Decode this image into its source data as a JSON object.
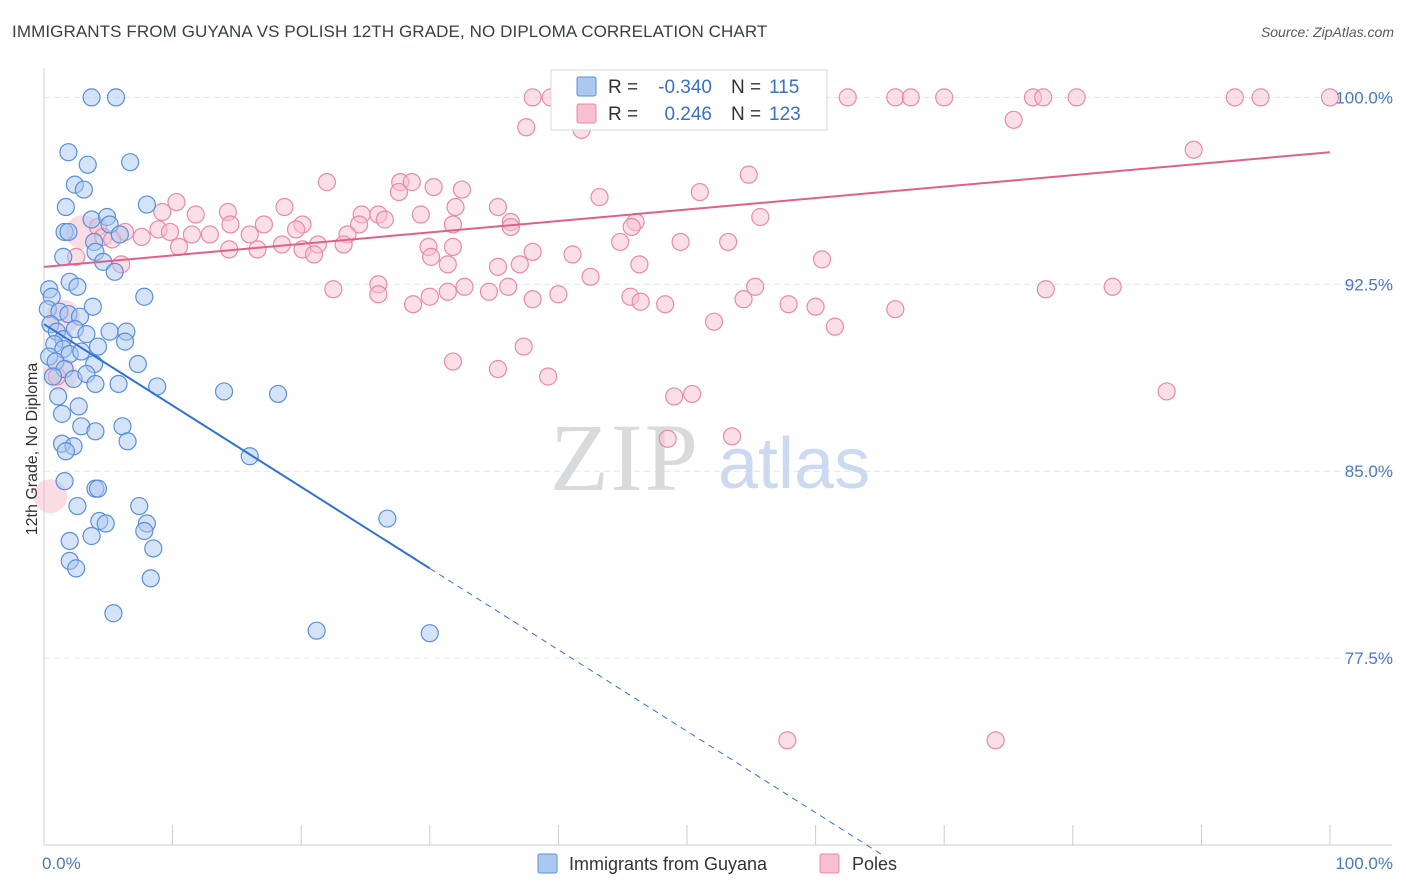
{
  "header": {
    "title": "IMMIGRANTS FROM GUYANA VS POLISH 12TH GRADE, NO DIPLOMA CORRELATION CHART",
    "source": "Source: ZipAtlas.com"
  },
  "watermark": {
    "zip": "ZIP",
    "atlas": "atlas"
  },
  "legend_top": {
    "rows": [
      {
        "r_label": "R =",
        "r_value": "-0.340",
        "n_label": "N =",
        "n_value": "115"
      },
      {
        "r_label": "R =",
        "r_value": "0.246",
        "n_label": "N =",
        "n_value": "123"
      }
    ]
  },
  "colors": {
    "blue_fill": "#aac8f0",
    "blue_stroke": "#5b8fd8",
    "blue_line": "#2f72d4",
    "pink_fill": "#f7bfd0",
    "pink_stroke": "#e88aa8",
    "pink_line": "#e0608a",
    "grid": "#e3e6ea",
    "tick_text": "#4a78c2"
  },
  "chart_data": {
    "type": "scatter",
    "title": "IMMIGRANTS FROM GUYANA VS POLISH 12TH GRADE, NO DIPLOMA CORRELATION CHART",
    "xlabel": "",
    "ylabel": "12th Grade, No Diploma",
    "xlim": [
      0,
      100
    ],
    "ylim": [
      70.0,
      101.5
    ],
    "x_tick_labels": [
      "0.0%",
      "100.0%"
    ],
    "y_ticks": [
      {
        "value": 77.5,
        "label": "77.5%"
      },
      {
        "value": 85.0,
        "label": "85.0%"
      },
      {
        "value": 92.5,
        "label": "92.5%"
      },
      {
        "value": 100.0,
        "label": "100.0%"
      }
    ],
    "grid": true,
    "legend_position": "top-center",
    "series": [
      {
        "name": "Immigrants from Guyana",
        "r": -0.34,
        "n": 115,
        "trend": {
          "x0": 0,
          "y0": 90.9,
          "x1": 30,
          "y1": 81.1,
          "dash_to_x": 65.2,
          "dash_to_y": 69.6
        },
        "points": [
          [
            3.7,
            100.0
          ],
          [
            5.6,
            100.0
          ],
          [
            1.9,
            97.8
          ],
          [
            3.4,
            97.3
          ],
          [
            6.7,
            97.4
          ],
          [
            2.4,
            96.5
          ],
          [
            3.1,
            96.3
          ],
          [
            1.7,
            95.6
          ],
          [
            8.0,
            95.7
          ],
          [
            3.7,
            95.1
          ],
          [
            4.9,
            95.2
          ],
          [
            5.1,
            94.9
          ],
          [
            1.6,
            94.6
          ],
          [
            1.9,
            94.6
          ],
          [
            3.9,
            94.2
          ],
          [
            5.9,
            94.5
          ],
          [
            1.5,
            93.6
          ],
          [
            4.0,
            93.8
          ],
          [
            4.6,
            93.4
          ],
          [
            5.5,
            93.0
          ],
          [
            2.0,
            92.6
          ],
          [
            2.6,
            92.4
          ],
          [
            0.4,
            92.3
          ],
          [
            0.6,
            92.0
          ],
          [
            7.8,
            92.0
          ],
          [
            0.3,
            91.5
          ],
          [
            1.2,
            91.4
          ],
          [
            1.9,
            91.3
          ],
          [
            2.8,
            91.2
          ],
          [
            3.8,
            91.6
          ],
          [
            0.5,
            90.9
          ],
          [
            1.0,
            90.6
          ],
          [
            1.5,
            90.3
          ],
          [
            2.4,
            90.7
          ],
          [
            3.3,
            90.5
          ],
          [
            5.1,
            90.6
          ],
          [
            6.4,
            90.6
          ],
          [
            0.8,
            90.1
          ],
          [
            1.5,
            89.9
          ],
          [
            2.0,
            89.7
          ],
          [
            2.9,
            89.8
          ],
          [
            4.2,
            90.0
          ],
          [
            6.3,
            90.2
          ],
          [
            0.4,
            89.6
          ],
          [
            0.9,
            89.4
          ],
          [
            1.6,
            89.1
          ],
          [
            3.9,
            89.3
          ],
          [
            7.3,
            89.3
          ],
          [
            0.7,
            88.8
          ],
          [
            2.3,
            88.7
          ],
          [
            3.3,
            88.9
          ],
          [
            4.0,
            88.5
          ],
          [
            5.8,
            88.5
          ],
          [
            8.8,
            88.4
          ],
          [
            14.0,
            88.2
          ],
          [
            18.2,
            88.1
          ],
          [
            1.1,
            88.0
          ],
          [
            2.7,
            87.6
          ],
          [
            1.4,
            87.3
          ],
          [
            2.9,
            86.8
          ],
          [
            4.0,
            86.6
          ],
          [
            6.1,
            86.8
          ],
          [
            6.5,
            86.2
          ],
          [
            1.4,
            86.1
          ],
          [
            2.3,
            86.0
          ],
          [
            1.7,
            85.8
          ],
          [
            16.0,
            85.6
          ],
          [
            1.6,
            84.6
          ],
          [
            4.0,
            84.3
          ],
          [
            4.2,
            84.3
          ],
          [
            2.6,
            83.6
          ],
          [
            7.4,
            83.6
          ],
          [
            4.3,
            83.0
          ],
          [
            4.8,
            82.9
          ],
          [
            8.0,
            82.9
          ],
          [
            7.8,
            82.6
          ],
          [
            3.7,
            82.4
          ],
          [
            2.0,
            82.2
          ],
          [
            8.5,
            81.9
          ],
          [
            2.0,
            81.4
          ],
          [
            2.5,
            81.1
          ],
          [
            8.3,
            80.7
          ],
          [
            26.7,
            83.1
          ],
          [
            5.4,
            79.3
          ],
          [
            21.2,
            78.6
          ],
          [
            30.0,
            78.5
          ]
        ]
      },
      {
        "name": "Poles",
        "r": 0.246,
        "n": 123,
        "trend": {
          "x0": 0,
          "y0": 93.2,
          "x1": 100,
          "y1": 97.8
        },
        "points": [
          [
            38.0,
            100.0
          ],
          [
            39.4,
            100.0
          ],
          [
            41.0,
            100.0
          ],
          [
            46.1,
            100.0
          ],
          [
            48.0,
            100.0
          ],
          [
            53.0,
            100.0
          ],
          [
            56.5,
            100.0
          ],
          [
            57.5,
            100.0
          ],
          [
            62.5,
            100.0
          ],
          [
            66.2,
            100.0
          ],
          [
            67.4,
            100.0
          ],
          [
            70.0,
            100.0
          ],
          [
            76.9,
            100.0
          ],
          [
            77.7,
            100.0
          ],
          [
            80.3,
            100.0
          ],
          [
            92.6,
            100.0
          ],
          [
            94.6,
            100.0
          ],
          [
            100.0,
            100.0
          ],
          [
            37.5,
            98.8
          ],
          [
            41.8,
            98.7
          ],
          [
            75.4,
            99.1
          ],
          [
            89.4,
            97.9
          ],
          [
            54.8,
            96.9
          ],
          [
            22.0,
            96.6
          ],
          [
            27.7,
            96.6
          ],
          [
            28.6,
            96.6
          ],
          [
            30.3,
            96.4
          ],
          [
            32.5,
            96.3
          ],
          [
            27.6,
            96.2
          ],
          [
            43.2,
            96.0
          ],
          [
            51.0,
            96.2
          ],
          [
            10.3,
            95.8
          ],
          [
            18.7,
            95.6
          ],
          [
            35.3,
            95.6
          ],
          [
            32.0,
            95.6
          ],
          [
            24.7,
            95.3
          ],
          [
            26.0,
            95.3
          ],
          [
            9.2,
            95.4
          ],
          [
            14.3,
            95.4
          ],
          [
            11.8,
            95.3
          ],
          [
            29.3,
            95.3
          ],
          [
            26.5,
            95.1
          ],
          [
            36.3,
            95.0
          ],
          [
            55.7,
            95.2
          ],
          [
            46.0,
            95.0
          ],
          [
            14.5,
            94.9
          ],
          [
            17.1,
            94.9
          ],
          [
            20.1,
            94.9
          ],
          [
            24.5,
            94.9
          ],
          [
            8.9,
            94.7
          ],
          [
            9.8,
            94.6
          ],
          [
            11.5,
            94.5
          ],
          [
            4.2,
            94.8
          ],
          [
            4.6,
            94.4
          ],
          [
            6.3,
            94.6
          ],
          [
            7.6,
            94.4
          ],
          [
            12.9,
            94.5
          ],
          [
            16.0,
            94.5
          ],
          [
            19.6,
            94.7
          ],
          [
            23.6,
            94.5
          ],
          [
            31.8,
            94.9
          ],
          [
            36.3,
            94.8
          ],
          [
            45.7,
            94.8
          ],
          [
            5.3,
            94.3
          ],
          [
            10.5,
            94.0
          ],
          [
            18.5,
            94.1
          ],
          [
            21.3,
            94.1
          ],
          [
            23.3,
            94.1
          ],
          [
            29.9,
            94.0
          ],
          [
            31.8,
            94.0
          ],
          [
            49.5,
            94.2
          ],
          [
            44.8,
            94.2
          ],
          [
            53.2,
            94.2
          ],
          [
            2.5,
            93.6
          ],
          [
            6.0,
            93.3
          ],
          [
            14.4,
            93.9
          ],
          [
            16.6,
            93.9
          ],
          [
            20.1,
            93.9
          ],
          [
            21.0,
            93.7
          ],
          [
            30.1,
            93.6
          ],
          [
            38.0,
            93.8
          ],
          [
            41.1,
            93.7
          ],
          [
            31.4,
            93.3
          ],
          [
            35.3,
            93.2
          ],
          [
            37.0,
            93.3
          ],
          [
            46.3,
            93.3
          ],
          [
            60.5,
            93.5
          ],
          [
            42.5,
            92.8
          ],
          [
            26.0,
            92.5
          ],
          [
            36.1,
            92.4
          ],
          [
            55.3,
            92.4
          ],
          [
            77.9,
            92.3
          ],
          [
            22.5,
            92.3
          ],
          [
            26.0,
            92.1
          ],
          [
            30.0,
            92.0
          ],
          [
            31.4,
            92.2
          ],
          [
            32.7,
            92.4
          ],
          [
            34.6,
            92.2
          ],
          [
            40.0,
            92.1
          ],
          [
            45.6,
            92.0
          ],
          [
            38.0,
            91.9
          ],
          [
            28.7,
            91.7
          ],
          [
            46.4,
            91.8
          ],
          [
            54.4,
            91.9
          ],
          [
            48.3,
            91.7
          ],
          [
            57.9,
            91.7
          ],
          [
            60.0,
            91.6
          ],
          [
            66.2,
            91.5
          ],
          [
            83.1,
            92.4
          ],
          [
            52.1,
            91.0
          ],
          [
            61.5,
            90.8
          ],
          [
            37.3,
            90.0
          ],
          [
            31.8,
            89.4
          ],
          [
            35.3,
            89.1
          ],
          [
            39.2,
            88.8
          ],
          [
            1.0,
            88.8
          ],
          [
            87.3,
            88.2
          ],
          [
            50.4,
            88.1
          ],
          [
            49.0,
            88.0
          ],
          [
            53.5,
            86.4
          ],
          [
            48.5,
            86.3
          ],
          [
            57.8,
            74.2
          ],
          [
            74.0,
            74.2
          ]
        ],
        "large_points": [
          [
            0.5,
            84.0
          ],
          [
            1.3,
            88.9
          ],
          [
            1.5,
            91.2
          ],
          [
            3.0,
            94.6
          ]
        ]
      }
    ]
  },
  "legend_bottom": {
    "items": [
      {
        "label": "Immigrants from Guyana"
      },
      {
        "label": "Poles"
      }
    ]
  }
}
